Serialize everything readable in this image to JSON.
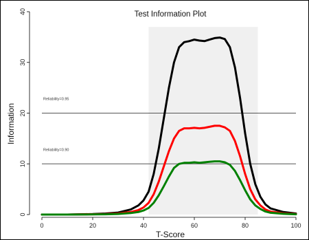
{
  "chart_data": {
    "type": "line",
    "title": "Test Information Plot",
    "xlabel": "T-Score",
    "ylabel": "Information",
    "xlim": [
      0,
      100
    ],
    "ylim": [
      0,
      40
    ],
    "xticks": [
      0,
      20,
      40,
      60,
      80,
      100
    ],
    "yticks": [
      0,
      10,
      20,
      30,
      40
    ],
    "shaded_region": {
      "x_from": 42,
      "x_to": 85,
      "y_to": 37,
      "color": "#f0f0f0"
    },
    "reference_lines": [
      {
        "y": 20,
        "label": "Reliability=0.95",
        "color": "#555555"
      },
      {
        "y": 10,
        "label": "Reliability=0.90",
        "color": "#555555"
      }
    ],
    "series": [
      {
        "color": "#000000",
        "x": [
          0,
          10,
          20,
          25,
          30,
          35,
          38,
          40,
          42,
          44,
          46,
          48,
          50,
          52,
          54,
          56,
          58,
          60,
          62,
          64,
          66,
          68,
          70,
          72,
          74,
          76,
          78,
          80,
          82,
          84,
          86,
          88,
          90,
          95,
          100
        ],
        "y": [
          0,
          0,
          0.1,
          0.2,
          0.4,
          1.0,
          1.8,
          2.8,
          4.5,
          8,
          13,
          19,
          25,
          30,
          33,
          34,
          34.2,
          34.5,
          34.3,
          34.2,
          34.5,
          34.8,
          34.9,
          34.6,
          33,
          29,
          23,
          16,
          10,
          6,
          3.5,
          2,
          1.2,
          0.5,
          0.2
        ]
      },
      {
        "color": "#ff0000",
        "x": [
          0,
          10,
          20,
          25,
          30,
          35,
          38,
          40,
          42,
          44,
          46,
          48,
          50,
          52,
          54,
          56,
          58,
          60,
          62,
          64,
          66,
          68,
          70,
          72,
          74,
          76,
          78,
          80,
          82,
          84,
          86,
          88,
          90,
          95,
          100
        ],
        "y": [
          0,
          0,
          0.05,
          0.1,
          0.2,
          0.5,
          0.9,
          1.4,
          2.3,
          4,
          6.5,
          9.5,
          12.5,
          15,
          16.5,
          17,
          17,
          17.1,
          17,
          17.1,
          17.3,
          17.5,
          17.5,
          17.2,
          16.5,
          14.5,
          11.5,
          8,
          5,
          3,
          1.8,
          1,
          0.6,
          0.25,
          0.1
        ]
      },
      {
        "color": "#008000",
        "x": [
          0,
          10,
          20,
          25,
          30,
          35,
          38,
          40,
          42,
          44,
          46,
          48,
          50,
          52,
          54,
          56,
          58,
          60,
          62,
          64,
          66,
          68,
          70,
          72,
          74,
          76,
          78,
          80,
          82,
          84,
          86,
          88,
          90,
          95,
          100
        ],
        "y": [
          0,
          0,
          0.03,
          0.06,
          0.12,
          0.3,
          0.5,
          0.8,
          1.3,
          2.3,
          3.8,
          5.6,
          7.5,
          9.2,
          10,
          10.2,
          10.2,
          10.3,
          10.2,
          10.3,
          10.4,
          10.5,
          10.5,
          10.3,
          9.8,
          8.6,
          6.8,
          4.8,
          3,
          1.8,
          1.1,
          0.6,
          0.35,
          0.15,
          0.05
        ]
      }
    ]
  }
}
